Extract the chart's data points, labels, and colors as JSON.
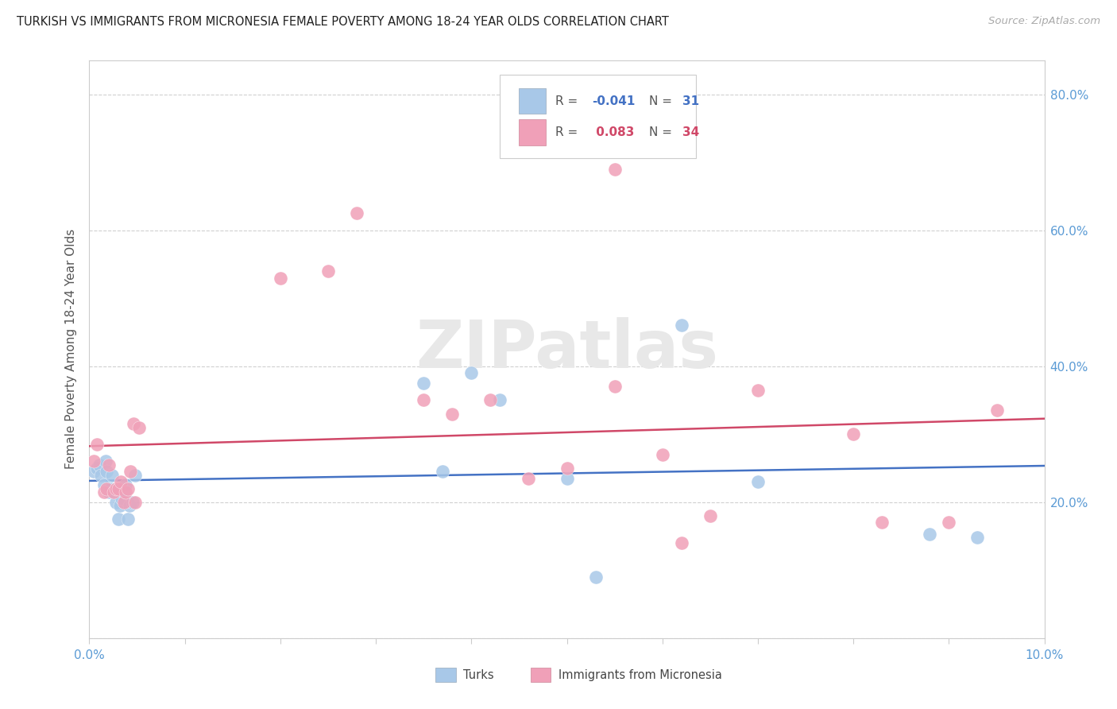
{
  "title": "TURKISH VS IMMIGRANTS FROM MICRONESIA FEMALE POVERTY AMONG 18-24 YEAR OLDS CORRELATION CHART",
  "source": "Source: ZipAtlas.com",
  "ylabel": "Female Poverty Among 18-24 Year Olds",
  "xlim": [
    0.0,
    0.1
  ],
  "ylim": [
    0.0,
    0.85
  ],
  "color_blue": "#a8c8e8",
  "color_pink": "#f0a0b8",
  "color_blue_line": "#4472c4",
  "color_pink_line": "#d04868",
  "color_axis_text": "#5b9bd5",
  "color_grid": "#d0d0d0",
  "legend_label1": "Turks",
  "legend_label2": "Immigrants from Micronesia",
  "watermark": "ZIPatlas",
  "turks_x": [
    0.0005,
    0.0008,
    0.001,
    0.0012,
    0.0015,
    0.0017,
    0.0018,
    0.002,
    0.0022,
    0.0024,
    0.0026,
    0.0028,
    0.003,
    0.0032,
    0.0034,
    0.0036,
    0.0038,
    0.004,
    0.0042,
    0.0045,
    0.0048,
    0.035,
    0.037,
    0.04,
    0.043,
    0.05,
    0.053,
    0.062,
    0.07,
    0.088,
    0.093
  ],
  "turks_y": [
    0.245,
    0.25,
    0.255,
    0.24,
    0.225,
    0.26,
    0.245,
    0.215,
    0.22,
    0.24,
    0.215,
    0.2,
    0.175,
    0.195,
    0.205,
    0.215,
    0.225,
    0.175,
    0.195,
    0.2,
    0.24,
    0.375,
    0.245,
    0.39,
    0.35,
    0.235,
    0.09,
    0.46,
    0.23,
    0.153,
    0.148
  ],
  "micronesia_x": [
    0.0005,
    0.0008,
    0.0015,
    0.0018,
    0.002,
    0.0025,
    0.0028,
    0.003,
    0.0033,
    0.0036,
    0.0038,
    0.004,
    0.0043,
    0.0046,
    0.0048,
    0.0052,
    0.02,
    0.025,
    0.028,
    0.035,
    0.038,
    0.042,
    0.046,
    0.05,
    0.055,
    0.055,
    0.06,
    0.062,
    0.065,
    0.07,
    0.08,
    0.083,
    0.09,
    0.095
  ],
  "micronesia_y": [
    0.26,
    0.285,
    0.215,
    0.22,
    0.255,
    0.215,
    0.22,
    0.22,
    0.23,
    0.2,
    0.215,
    0.22,
    0.245,
    0.315,
    0.2,
    0.31,
    0.53,
    0.54,
    0.625,
    0.35,
    0.33,
    0.35,
    0.235,
    0.25,
    0.37,
    0.69,
    0.27,
    0.14,
    0.18,
    0.365,
    0.3,
    0.17,
    0.17,
    0.335
  ]
}
